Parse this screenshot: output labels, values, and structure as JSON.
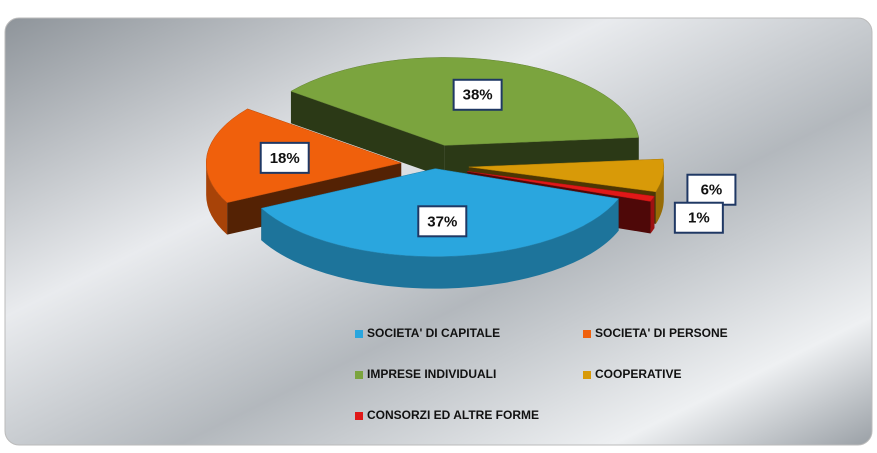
{
  "chart_data": {
    "type": "pie3d",
    "categories": [
      "SOCIETA' DI CAPITALE",
      "SOCIETA' DI PERSONE",
      "IMPRESE INDIVIDUALI",
      "COOPERATIVE",
      "CONSORZI ED ALTRE FORME"
    ],
    "values": [
      37,
      18,
      38,
      6,
      1
    ],
    "value_labels": [
      "37%",
      "18%",
      "38%",
      "6%",
      "1%"
    ],
    "colors": [
      "#2aa6de",
      "#f0600c",
      "#7ba43e",
      "#d89a08",
      "#e01818"
    ],
    "legend": "bottom"
  }
}
